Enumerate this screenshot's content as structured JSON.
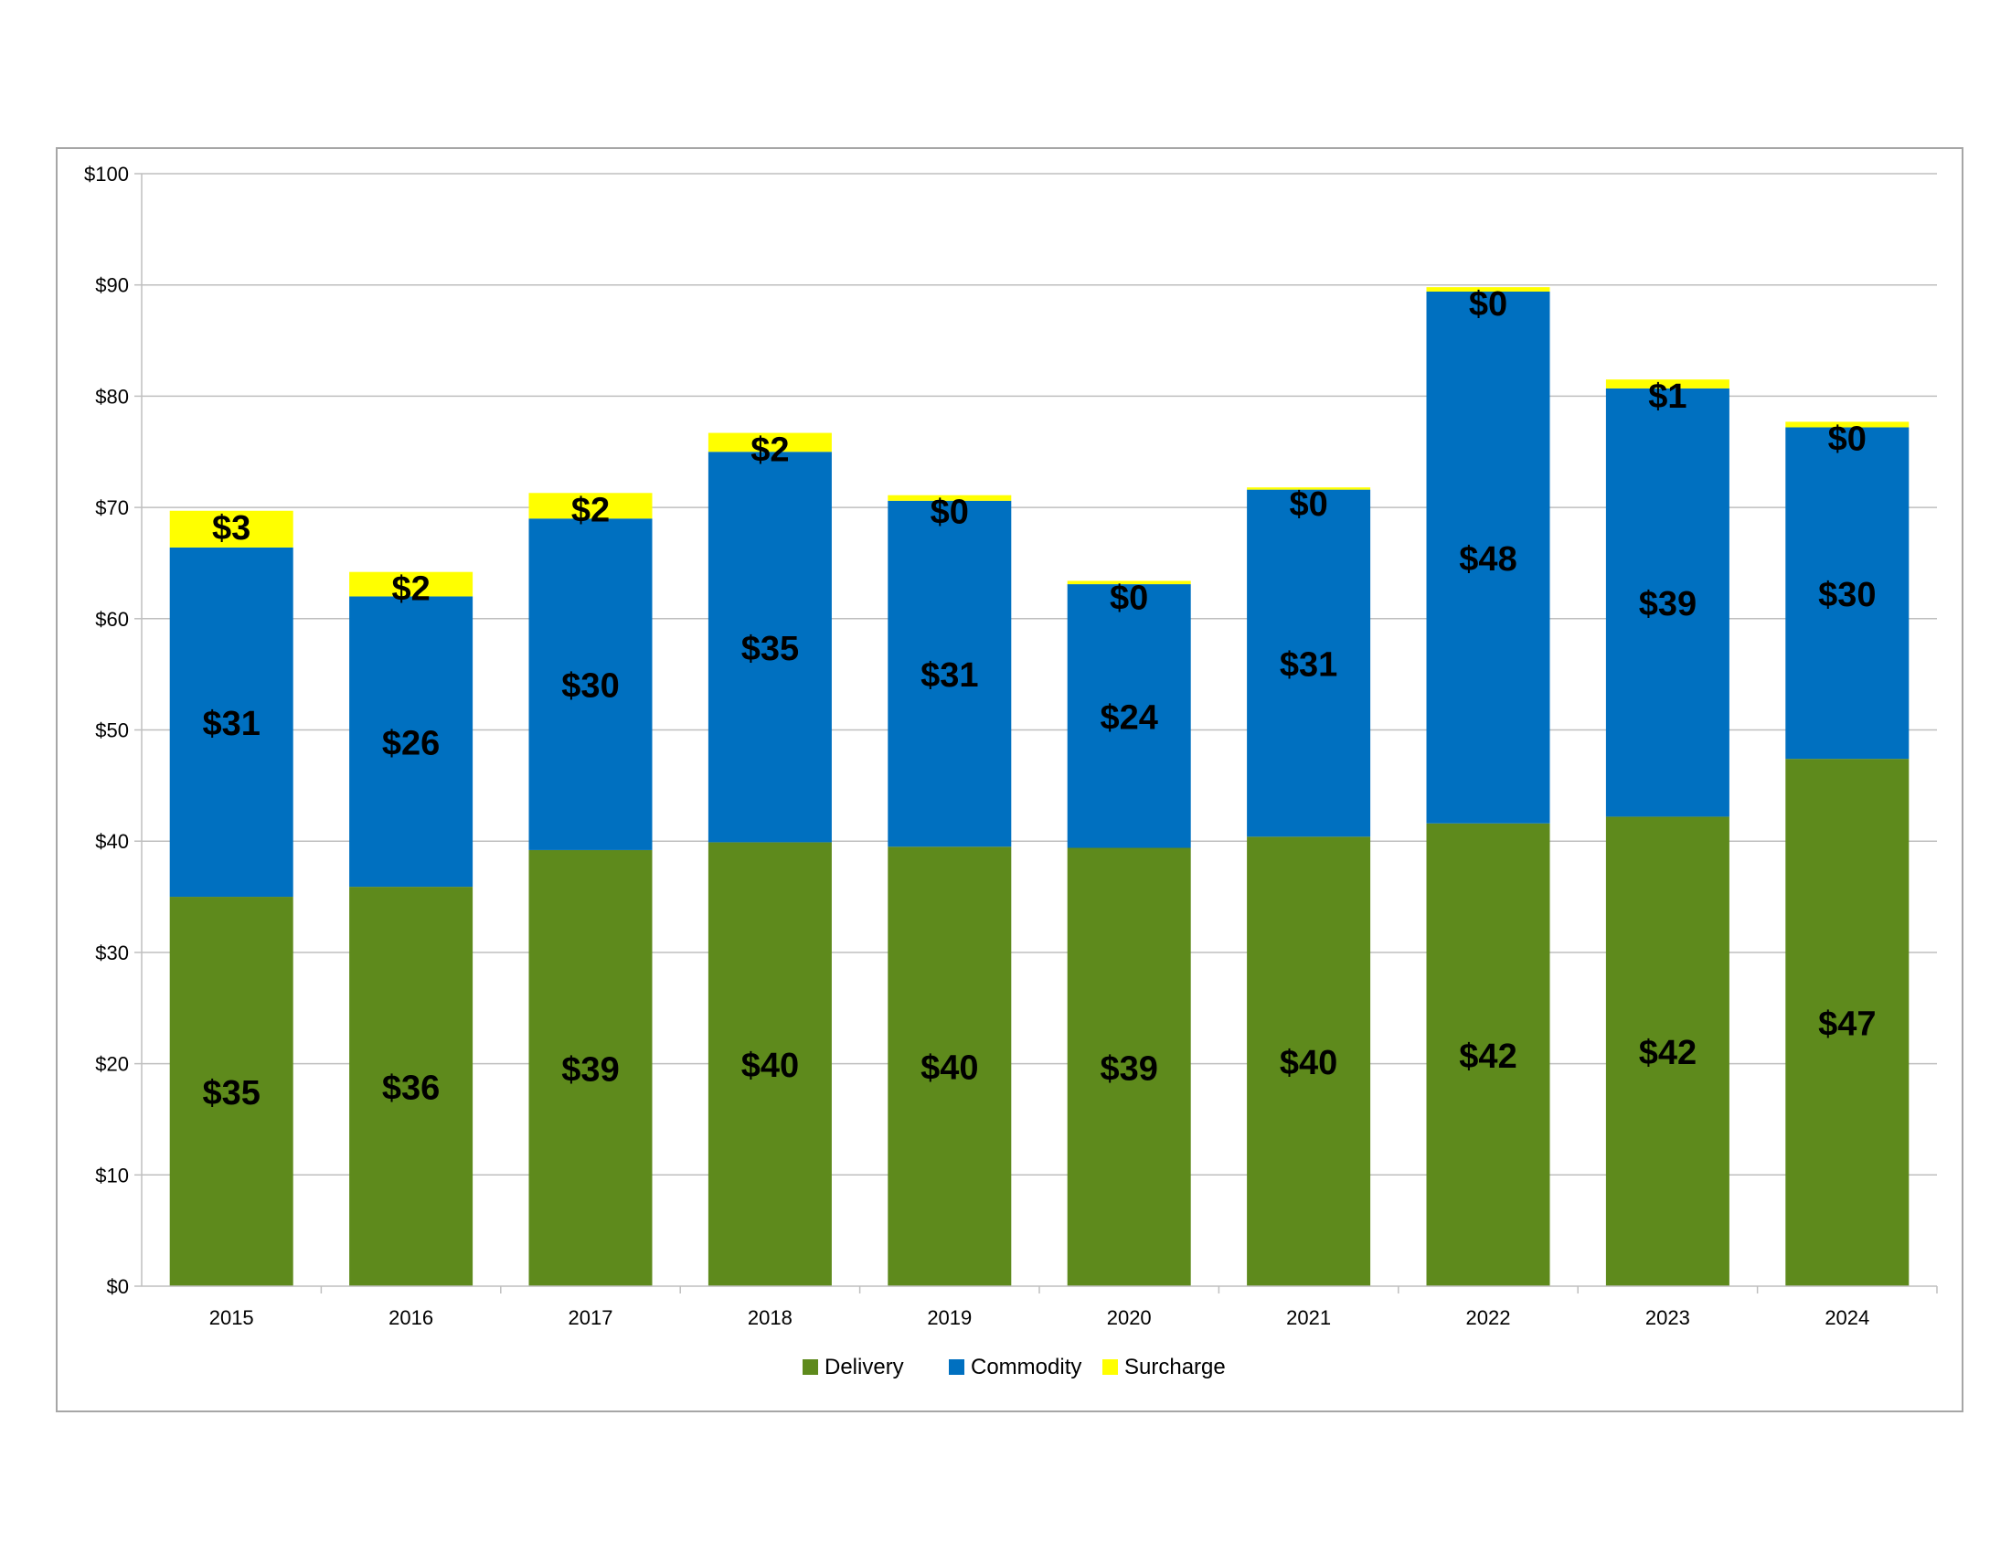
{
  "chart_data": {
    "type": "bar",
    "stacked": true,
    "title": "",
    "xlabel": "",
    "ylabel": "",
    "ylim": [
      0,
      100
    ],
    "y_ticks": [
      0,
      10,
      20,
      30,
      40,
      50,
      60,
      70,
      80,
      90,
      100
    ],
    "y_tick_labels": [
      "$0",
      "$10",
      "$20",
      "$30",
      "$40",
      "$50",
      "$60",
      "$70",
      "$80",
      "$90",
      "$100"
    ],
    "grid": true,
    "legend_position": "bottom",
    "categories": [
      "2015",
      "2016",
      "2017",
      "2018",
      "2019",
      "2020",
      "2021",
      "2022",
      "2023",
      "2024"
    ],
    "series": [
      {
        "name": "Delivery",
        "color": "#5e8a1c",
        "values": [
          35,
          35.9,
          39.2,
          39.9,
          39.5,
          39.4,
          40.4,
          41.6,
          42.2,
          47.4
        ],
        "labels": [
          "$35",
          "$36",
          "$39",
          "$40",
          "$40",
          "$39",
          "$40",
          "$42",
          "$42",
          "$47"
        ]
      },
      {
        "name": "Commodity",
        "color": "#0070c0",
        "values": [
          31.4,
          26.1,
          29.8,
          35.1,
          31.1,
          23.7,
          31.2,
          47.8,
          38.5,
          29.8
        ],
        "labels": [
          "$31",
          "$26",
          "$30",
          "$35",
          "$31",
          "$24",
          "$31",
          "$48",
          "$39",
          "$30"
        ]
      },
      {
        "name": "Surcharge",
        "color": "#ffff00",
        "values": [
          3.3,
          2.2,
          2.3,
          1.7,
          0.5,
          0.3,
          0.2,
          0.4,
          0.8,
          0.5
        ],
        "labels": [
          "$3",
          "$2",
          "$2",
          "$2",
          "$0",
          "$0",
          "$0",
          "$0",
          "$1",
          "$0"
        ]
      }
    ]
  }
}
